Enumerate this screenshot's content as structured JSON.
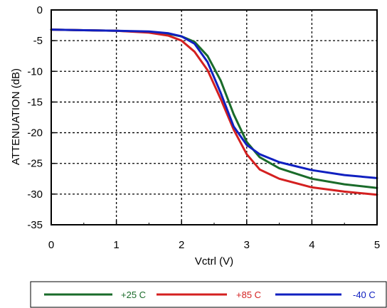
{
  "chart_data": {
    "type": "line",
    "xlabel": "Vctrl (V)",
    "ylabel": "ATTENUATION (dB)",
    "xlim": [
      0,
      5
    ],
    "ylim": [
      -35,
      0
    ],
    "xticks": [
      "0",
      "1",
      "2",
      "3",
      "4",
      "5"
    ],
    "yticks": [
      "0",
      "-5",
      "-10",
      "-15",
      "-20",
      "-25",
      "-30",
      "-35"
    ],
    "grid": true,
    "legend_position": "bottom",
    "series": [
      {
        "name": "+25 C",
        "color": "#1a6b2a",
        "x": [
          0,
          0.5,
          1.0,
          1.5,
          1.8,
          2.0,
          2.2,
          2.4,
          2.6,
          2.8,
          3.0,
          3.2,
          3.5,
          4.0,
          4.5,
          5.0
        ],
        "y": [
          -3.2,
          -3.3,
          -3.4,
          -3.6,
          -3.9,
          -4.3,
          -5.2,
          -7.5,
          -11.5,
          -17.0,
          -21.5,
          -24.0,
          -25.8,
          -27.5,
          -28.4,
          -29.0
        ]
      },
      {
        "name": "+85 C",
        "color": "#d42020",
        "x": [
          0,
          0.5,
          1.0,
          1.5,
          1.8,
          2.0,
          2.2,
          2.4,
          2.6,
          2.8,
          3.0,
          3.2,
          3.5,
          4.0,
          4.5,
          5.0
        ],
        "y": [
          -3.2,
          -3.3,
          -3.4,
          -3.7,
          -4.2,
          -5.0,
          -6.8,
          -9.8,
          -14.5,
          -19.5,
          -23.5,
          -26.0,
          -27.5,
          -28.9,
          -29.6,
          -30.1
        ]
      },
      {
        "name": "-40 C",
        "color": "#1020c0",
        "x": [
          0,
          0.5,
          1.0,
          1.5,
          1.8,
          2.0,
          2.2,
          2.4,
          2.6,
          2.8,
          3.0,
          3.2,
          3.5,
          4.0,
          4.5,
          5.0
        ],
        "y": [
          -3.2,
          -3.3,
          -3.4,
          -3.5,
          -3.8,
          -4.3,
          -5.5,
          -8.5,
          -13.5,
          -19.0,
          -22.0,
          -23.5,
          -24.8,
          -26.1,
          -26.9,
          -27.4
        ]
      }
    ]
  }
}
